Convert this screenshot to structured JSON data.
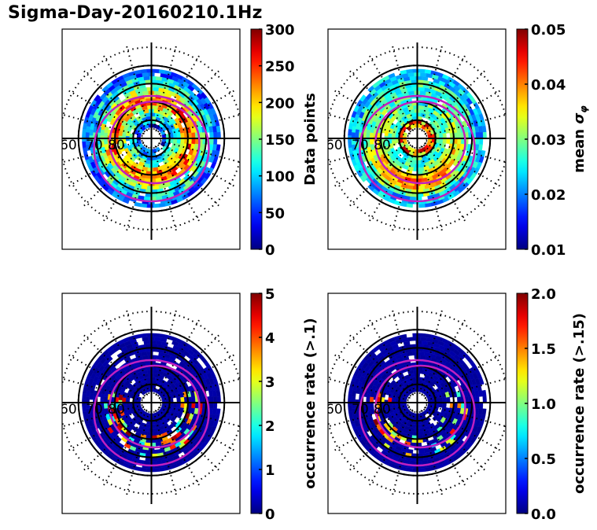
{
  "figure_title": "Sigma-Day-20160210.1Hz",
  "chart_data": [
    {
      "type": "heatmap",
      "projection": "polar (geomagnetic latitude / MLT)",
      "panel": "top-left",
      "title": "",
      "latitude_labels": [
        "60",
        "70",
        "80"
      ],
      "latitude_circles_solid": [
        50,
        60,
        70,
        80
      ],
      "colormap": "jet",
      "colorbar": {
        "label": "Data points",
        "range": [
          0,
          300
        ],
        "ticks": [
          "0",
          "50",
          "100",
          "150",
          "200",
          "250",
          "300"
        ]
      },
      "dominant_values": "mostly 50-200 data points; higher (200-300) in a ring near 70-75 deg",
      "overlay": "two magenta auroral oval boundaries",
      "seed": 11
    },
    {
      "type": "heatmap",
      "projection": "polar (geomagnetic latitude / MLT)",
      "panel": "top-right",
      "title": "",
      "latitude_labels": [
        "60",
        "70",
        "80"
      ],
      "latitude_circles_solid": [
        50,
        60,
        70,
        80
      ],
      "colormap": "jet",
      "colorbar": {
        "label": "mean σ_φ",
        "label_main": "mean ",
        "label_symbol": "σ",
        "label_sub": "φ",
        "range": [
          0.01,
          0.05
        ],
        "ticks": [
          "0.01",
          "0.02",
          "0.03",
          "0.04",
          "0.05"
        ]
      },
      "dominant_values": "0.02-0.03 at low latitudes; 0.04-0.05 on night-side oval",
      "overlay": "two magenta auroral oval boundaries",
      "seed": 23
    },
    {
      "type": "heatmap",
      "projection": "polar (geomagnetic latitude / MLT)",
      "panel": "bottom-left",
      "title": "",
      "latitude_labels": [
        "60",
        "70",
        "80"
      ],
      "latitude_circles_solid": [
        50,
        60,
        70,
        80
      ],
      "colormap": "jet",
      "colorbar": {
        "label": "occurrence rate (>.1)",
        "range": [
          0,
          5
        ],
        "ticks": [
          "0",
          "1",
          "2",
          "3",
          "4",
          "5"
        ]
      },
      "dominant_values": "mostly 0; sparse 1-5 patches in night-side oval",
      "overlay": "two magenta auroral oval boundaries",
      "seed": 37
    },
    {
      "type": "heatmap",
      "projection": "polar (geomagnetic latitude / MLT)",
      "panel": "bottom-right",
      "title": "",
      "latitude_labels": [
        "60",
        "70",
        "80"
      ],
      "latitude_circles_solid": [
        50,
        60,
        70,
        80
      ],
      "colormap": "jet",
      "colorbar": {
        "label": "occurrence rate (>.15)",
        "range": [
          0.0,
          2.0
        ],
        "ticks": [
          "0.0",
          "0.5",
          "1.0",
          "1.5",
          "2.0"
        ]
      },
      "dominant_values": "mostly 0; sparse 0.5-2.0 patches in night-side oval",
      "overlay": "two magenta auroral oval boundaries",
      "seed": 53
    }
  ]
}
